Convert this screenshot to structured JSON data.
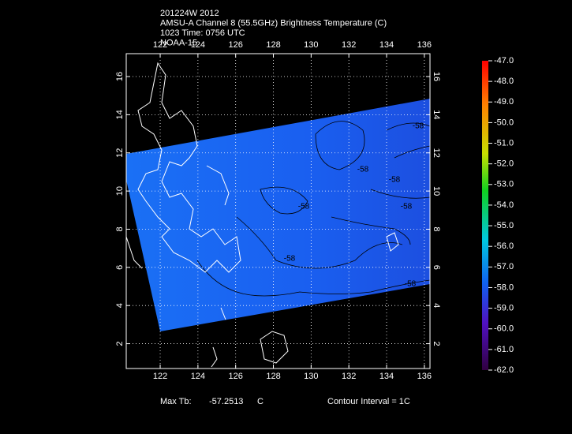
{
  "header": {
    "lines": [
      "201224W 2012",
      "AMSU-A Channel 8 (55.5GHz) Brightness Temperature (C)",
      "1023 Time: 0756 UTC",
      "NOAA-15"
    ]
  },
  "map": {
    "lon_lim": [
      120.2,
      136.3
    ],
    "lat_lim": [
      0.7,
      17.2
    ],
    "lon_ticks": [
      122,
      124,
      126,
      128,
      130,
      132,
      134,
      136
    ],
    "lat_ticks": [
      2,
      4,
      6,
      8,
      10,
      12,
      14,
      16
    ],
    "contour_labels": [
      "-58",
      "-58",
      "-58",
      "-58",
      "-58",
      "-58",
      "-58"
    ]
  },
  "colorbar": {
    "lim": [
      -62,
      -47
    ],
    "ticks": [
      {
        "value": -47,
        "label": "-47.0"
      },
      {
        "value": -48,
        "label": "-48.0"
      },
      {
        "value": -49,
        "label": "-49.0"
      },
      {
        "value": -50,
        "label": "-50.0"
      },
      {
        "value": -51,
        "label": "-51.0"
      },
      {
        "value": -52,
        "label": "-52.0"
      },
      {
        "value": -53,
        "label": "-53.0"
      },
      {
        "value": -54,
        "label": "-54.0"
      },
      {
        "value": -55,
        "label": "-55.0"
      },
      {
        "value": -56,
        "label": "-56.0"
      },
      {
        "value": -57,
        "label": "-57.0"
      },
      {
        "value": -58,
        "label": "-58.0"
      },
      {
        "value": -59,
        "label": "-59.0"
      },
      {
        "value": -60,
        "label": "-60.0"
      },
      {
        "value": -61,
        "label": "-61.0"
      },
      {
        "value": -62,
        "label": "-62.0"
      }
    ]
  },
  "footer": {
    "max_label": "Max Tb:",
    "max_value": "-57.2513",
    "unit": "C",
    "contour_interval": "Contour Interval = 1C"
  }
}
